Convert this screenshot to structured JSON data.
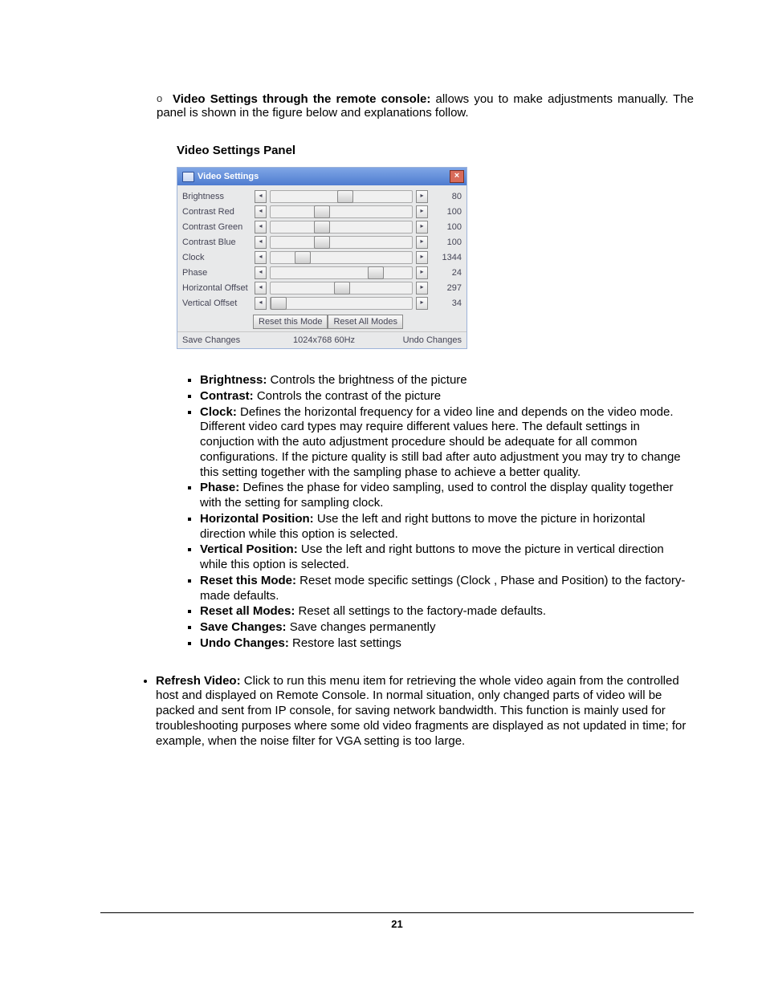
{
  "lead": {
    "bullet": "o",
    "heading": "Video Settings through the remote console:",
    "text": " allows you to make adjustments manually. The panel is shown in the figure below and explanations follow."
  },
  "panel_title": "Video Settings Panel",
  "panel": {
    "title": "Video Settings",
    "close_glyph": "×",
    "background_color": "#e8e9ea",
    "titlebar_gradient": [
      "#7fa6e6",
      "#4e7bd0"
    ],
    "border_color": "#9db3d9",
    "close_bg": "#d86b5a",
    "rows": [
      {
        "label": "Brightness",
        "value": "80",
        "thumb_pct": 52
      },
      {
        "label": "Contrast Red",
        "value": "100",
        "thumb_pct": 36
      },
      {
        "label": "Contrast Green",
        "value": "100",
        "thumb_pct": 36
      },
      {
        "label": "Contrast Blue",
        "value": "100",
        "thumb_pct": 36
      },
      {
        "label": "Clock",
        "value": "1344",
        "thumb_pct": 22
      },
      {
        "label": "Phase",
        "value": "24",
        "thumb_pct": 74
      },
      {
        "label": "Horizontal Offset",
        "value": "297",
        "thumb_pct": 50
      },
      {
        "label": "Vertical Offset",
        "value": "34",
        "thumb_pct": 5
      }
    ],
    "arrow_left": "◂",
    "arrow_right": "▸",
    "reset_this": "Reset this Mode",
    "reset_all": "Reset All Modes",
    "save": "Save Changes",
    "resolution": "1024x768 60Hz",
    "undo": "Undo Changes"
  },
  "bullets": [
    {
      "h": "Brightness:",
      "t": " Controls the brightness of the picture"
    },
    {
      "h": "Contrast:",
      "t": " Controls the contrast of the picture"
    },
    {
      "h": "Clock:",
      "t": " Defines the horizontal frequency for a video line and depends on the video mode. Different video card types may require different values here. The default settings in conjuction with the auto adjustment procedure should be adequate for all common configurations. If the picture quality is still bad after auto adjustment you may try to change this setting together with the sampling phase to achieve a better quality."
    },
    {
      "h": "Phase:",
      "t": " Defines the phase for video sampling, used to control the display quality together with the setting for sampling clock."
    },
    {
      "h": "Horizontal Position:",
      "t": " Use the left and right buttons to move the picture in horizontal direction while this option is selected."
    },
    {
      "h": "Vertical Position:",
      "t": " Use the left and right buttons to move the picture in vertical direction while this option is selected."
    },
    {
      "h": "Reset this Mode:",
      "t": " Reset mode specific settings (Clock , Phase and Position)  to the factory-made defaults."
    },
    {
      "h": "Reset all Modes:",
      "t": " Reset all settings to the factory-made defaults."
    },
    {
      "h": "Save Changes:",
      "t": " Save changes permanently"
    },
    {
      "h": "Undo Changes:",
      "t": " Restore last settings"
    }
  ],
  "refresh": {
    "h": "Refresh Video:",
    "t": " Click to run this menu item for retrieving the whole video again from the controlled host and displayed on Remote Console. In normal situation, only changed parts of video will be packed and sent from IP console, for saving network bandwidth. This function is mainly used for troubleshooting purposes where some old video fragments are displayed as not updated in time; for example, when the noise filter for VGA setting is too large."
  },
  "page_number": "21"
}
